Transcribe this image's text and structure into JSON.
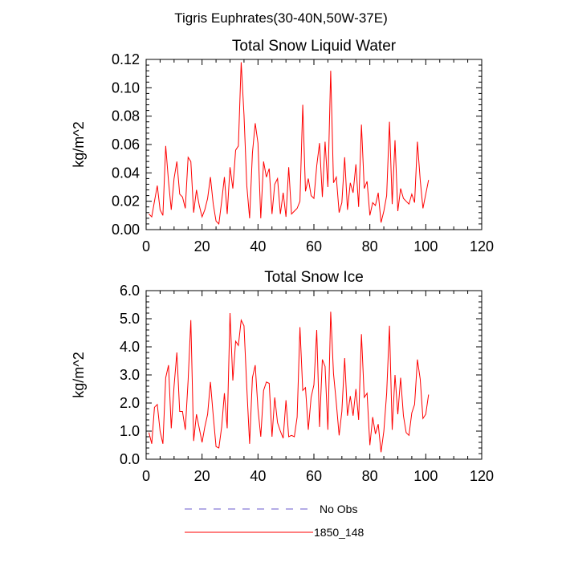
{
  "page": {
    "title": "Tigris Euphrates(30-40N,50W-37E)"
  },
  "legend": {
    "placement": "bottom",
    "entries": [
      {
        "label": "No Obs",
        "color": "#6a5acd",
        "dash": "dashed"
      },
      {
        "label": "1850_148",
        "color": "#ff0000",
        "dash": "solid"
      }
    ]
  },
  "chart_data": [
    {
      "type": "line",
      "title": "Total Snow Liquid Water",
      "xlabel": "",
      "ylabel": "kg/m^2",
      "xlim": [
        0,
        120
      ],
      "ylim": [
        0,
        0.12
      ],
      "xticks": [
        "0",
        "20",
        "40",
        "60",
        "80",
        "100",
        "120"
      ],
      "yticks": [
        "0.00",
        "0.02",
        "0.04",
        "0.06",
        "0.08",
        "0.10",
        "0.12"
      ],
      "grid": false,
      "series": [
        {
          "name": "1850_148",
          "color": "#ff0000",
          "x": [
            1,
            2,
            3,
            4,
            5,
            6,
            7,
            8,
            9,
            10,
            11,
            12,
            13,
            14,
            15,
            16,
            17,
            18,
            19,
            20,
            21,
            22,
            23,
            24,
            25,
            26,
            27,
            28,
            29,
            30,
            31,
            32,
            33,
            34,
            35,
            36,
            37,
            38,
            39,
            40,
            41,
            42,
            43,
            44,
            45,
            46,
            47,
            48,
            49,
            50,
            51,
            52,
            53,
            54,
            55,
            56,
            57,
            58,
            59,
            60,
            61,
            62,
            63,
            64,
            65,
            66,
            67,
            68,
            69,
            70,
            71,
            72,
            73,
            74,
            75,
            76,
            77,
            78,
            79,
            80,
            81,
            82,
            83,
            84,
            85,
            86,
            87,
            88,
            89,
            90,
            91,
            92,
            93,
            94,
            95,
            96,
            97,
            98,
            99,
            100,
            101
          ],
          "values": [
            0.011,
            0.009,
            0.02,
            0.031,
            0.014,
            0.01,
            0.059,
            0.034,
            0.014,
            0.036,
            0.048,
            0.025,
            0.023,
            0.015,
            0.051,
            0.048,
            0.012,
            0.028,
            0.017,
            0.009,
            0.014,
            0.022,
            0.037,
            0.018,
            0.006,
            0.004,
            0.02,
            0.037,
            0.011,
            0.044,
            0.029,
            0.056,
            0.059,
            0.118,
            0.081,
            0.031,
            0.008,
            0.054,
            0.075,
            0.061,
            0.008,
            0.048,
            0.037,
            0.043,
            0.011,
            0.032,
            0.036,
            0.011,
            0.026,
            0.009,
            0.044,
            0.011,
            0.013,
            0.015,
            0.02,
            0.088,
            0.027,
            0.036,
            0.024,
            0.022,
            0.045,
            0.061,
            0.023,
            0.062,
            0.03,
            0.112,
            0.033,
            0.037,
            0.012,
            0.019,
            0.051,
            0.014,
            0.033,
            0.026,
            0.046,
            0.016,
            0.074,
            0.029,
            0.034,
            0.01,
            0.019,
            0.017,
            0.026,
            0.005,
            0.013,
            0.024,
            0.076,
            0.018,
            0.063,
            0.013,
            0.029,
            0.022,
            0.02,
            0.018,
            0.025,
            0.019,
            0.062,
            0.035,
            0.015,
            0.025,
            0.035
          ]
        }
      ]
    },
    {
      "type": "line",
      "title": "Total Snow Ice",
      "xlabel": "",
      "ylabel": "kg/m^2",
      "xlim": [
        0,
        120
      ],
      "ylim": [
        0,
        6
      ],
      "xticks": [
        "0",
        "20",
        "40",
        "60",
        "80",
        "100",
        "120"
      ],
      "yticks": [
        "0.0",
        "1.0",
        "2.0",
        "3.0",
        "4.0",
        "5.0",
        "6.0"
      ],
      "grid": false,
      "series": [
        {
          "name": "1850_148",
          "color": "#ff0000",
          "x": [
            1,
            2,
            3,
            4,
            5,
            6,
            7,
            8,
            9,
            10,
            11,
            12,
            13,
            14,
            15,
            16,
            17,
            18,
            19,
            20,
            21,
            22,
            23,
            24,
            25,
            26,
            27,
            28,
            29,
            30,
            31,
            32,
            33,
            34,
            35,
            36,
            37,
            38,
            39,
            40,
            41,
            42,
            43,
            44,
            45,
            46,
            47,
            48,
            49,
            50,
            51,
            52,
            53,
            54,
            55,
            56,
            57,
            58,
            59,
            60,
            61,
            62,
            63,
            64,
            65,
            66,
            67,
            68,
            69,
            70,
            71,
            72,
            73,
            74,
            75,
            76,
            77,
            78,
            79,
            80,
            81,
            82,
            83,
            84,
            85,
            86,
            87,
            88,
            89,
            90,
            91,
            92,
            93,
            94,
            95,
            96,
            97,
            98,
            99,
            100,
            101
          ],
          "values": [
            0.95,
            0.55,
            1.85,
            1.95,
            1.0,
            0.55,
            2.9,
            3.35,
            1.1,
            2.6,
            3.8,
            1.7,
            1.7,
            1.05,
            2.8,
            4.95,
            0.65,
            1.6,
            1.1,
            0.6,
            1.15,
            1.6,
            2.75,
            1.55,
            0.45,
            0.4,
            1.15,
            2.35,
            1.1,
            5.2,
            2.8,
            4.2,
            4.05,
            4.95,
            4.75,
            2.55,
            0.55,
            2.9,
            3.35,
            1.8,
            0.8,
            2.45,
            2.75,
            2.7,
            0.8,
            2.2,
            1.3,
            1.0,
            0.75,
            2.1,
            0.8,
            0.85,
            0.8,
            1.5,
            4.7,
            2.45,
            2.55,
            1.05,
            2.2,
            2.65,
            4.6,
            1.15,
            3.55,
            3.3,
            1.05,
            5.25,
            3.05,
            2.0,
            0.85,
            1.7,
            3.6,
            1.55,
            2.25,
            1.55,
            2.5,
            1.4,
            4.45,
            2.2,
            2.35,
            0.5,
            1.5,
            0.9,
            1.25,
            0.25,
            1.0,
            2.35,
            4.75,
            1.05,
            3.0,
            1.6,
            2.9,
            1.55,
            0.95,
            0.85,
            1.65,
            1.95,
            3.55,
            2.85,
            1.45,
            1.6,
            2.3
          ]
        }
      ]
    }
  ]
}
